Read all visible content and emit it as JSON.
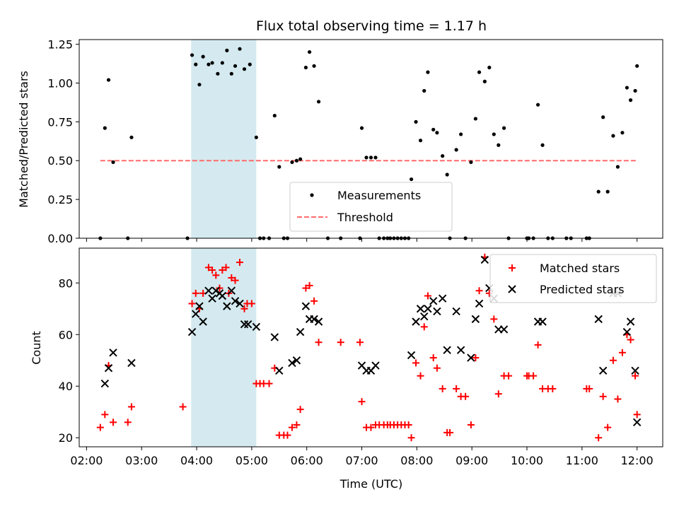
{
  "chart_data": {
    "type": "scatter",
    "title": "Flux total observing time = 1.17 h",
    "shaded_window": {
      "start": "03:54",
      "end": "05:05",
      "color": "#d4eaf0"
    },
    "top": {
      "ylabel": "Matched/Predicted stars",
      "ylim": [
        0,
        1.28
      ],
      "yticks": [
        "0.00",
        "0.25",
        "0.50",
        "0.75",
        "1.00",
        "1.25"
      ],
      "series": [
        {
          "name": "Measurements",
          "color": "#000000",
          "marker": "dot",
          "points": [
            [
              "02:15",
              0
            ],
            [
              "02:20",
              0.71
            ],
            [
              "02:24",
              1.02
            ],
            [
              "02:29",
              0.49
            ],
            [
              "02:45",
              0
            ],
            [
              "02:49",
              0.65
            ],
            [
              "03:50",
              0
            ],
            [
              "03:55",
              1.18
            ],
            [
              "03:59",
              1.12
            ],
            [
              "04:03",
              0.99
            ],
            [
              "04:07",
              1.17
            ],
            [
              "04:13",
              1.12
            ],
            [
              "04:17",
              1.13
            ],
            [
              "04:23",
              1.06
            ],
            [
              "04:28",
              1.13
            ],
            [
              "04:33",
              1.21
            ],
            [
              "04:38",
              1.06
            ],
            [
              "04:42",
              1.11
            ],
            [
              "04:47",
              1.22
            ],
            [
              "04:52",
              1.09
            ],
            [
              "04:58",
              1.12
            ],
            [
              "05:05",
              0.65
            ],
            [
              "05:09",
              0
            ],
            [
              "05:13",
              0
            ],
            [
              "05:19",
              0
            ],
            [
              "05:25",
              0.79
            ],
            [
              "05:30",
              0.46
            ],
            [
              "05:35",
              0
            ],
            [
              "05:39",
              0
            ],
            [
              "05:44",
              0.49
            ],
            [
              "05:49",
              0.5
            ],
            [
              "05:53",
              0.51
            ],
            [
              "05:59",
              1.1
            ],
            [
              "06:03",
              1.2
            ],
            [
              "06:08",
              1.11
            ],
            [
              "06:13",
              0.88
            ],
            [
              "06:23",
              0
            ],
            [
              "06:37",
              0
            ],
            [
              "06:58",
              0
            ],
            [
              "07:00",
              0.71
            ],
            [
              "07:05",
              0.52
            ],
            [
              "07:10",
              0.52
            ],
            [
              "07:15",
              0.52
            ],
            [
              "07:19",
              0
            ],
            [
              "07:24",
              0
            ],
            [
              "07:28",
              0
            ],
            [
              "07:31",
              0
            ],
            [
              "07:35",
              0
            ],
            [
              "07:39",
              0
            ],
            [
              "07:43",
              0
            ],
            [
              "07:47",
              0
            ],
            [
              "07:51",
              0
            ],
            [
              "07:54",
              0.38
            ],
            [
              "07:59",
              0.75
            ],
            [
              "08:04",
              0.63
            ],
            [
              "08:08",
              0.95
            ],
            [
              "08:12",
              1.07
            ],
            [
              "08:18",
              0.7
            ],
            [
              "08:22",
              0.68
            ],
            [
              "08:28",
              0.53
            ],
            [
              "08:33",
              0.41
            ],
            [
              "08:36",
              0
            ],
            [
              "08:43",
              0.57
            ],
            [
              "08:48",
              0.67
            ],
            [
              "08:53",
              0
            ],
            [
              "08:59",
              0.49
            ],
            [
              "09:04",
              0.77
            ],
            [
              "09:08",
              1.07
            ],
            [
              "09:14",
              1.01
            ],
            [
              "09:19",
              1.1
            ],
            [
              "09:24",
              0.67
            ],
            [
              "09:29",
              0.6
            ],
            [
              "09:35",
              0.71
            ],
            [
              "09:40",
              0
            ],
            [
              "10:00",
              0
            ],
            [
              "10:02",
              0
            ],
            [
              "10:07",
              0
            ],
            [
              "10:12",
              0.86
            ],
            [
              "10:17",
              0.6
            ],
            [
              "10:23",
              0
            ],
            [
              "10:28",
              0
            ],
            [
              "10:43",
              0
            ],
            [
              "10:48",
              0
            ],
            [
              "11:05",
              0
            ],
            [
              "11:08",
              0
            ],
            [
              "11:18",
              0.3
            ],
            [
              "11:23",
              0.78
            ],
            [
              "11:28",
              0.3
            ],
            [
              "11:34",
              0.66
            ],
            [
              "11:39",
              0.46
            ],
            [
              "11:44",
              0.68
            ],
            [
              "11:49",
              0.97
            ],
            [
              "11:53",
              0.89
            ],
            [
              "11:58",
              0.95
            ],
            [
              "12:00",
              1.11
            ]
          ]
        },
        {
          "name": "Threshold",
          "color": "#ff6b6b",
          "style": "dashed",
          "points": [
            [
              "02:15",
              0.5
            ],
            [
              "12:00",
              0.5
            ]
          ]
        }
      ],
      "legend_position": "lower center"
    },
    "bottom": {
      "ylabel": "Count",
      "xlabel": "Time (UTC)",
      "ylim": [
        16.5,
        93.5
      ],
      "yticks": [
        "20",
        "40",
        "60",
        "80"
      ],
      "xticks": [
        "02:00",
        "03:00",
        "04:00",
        "05:00",
        "06:00",
        "07:00",
        "08:00",
        "09:00",
        "10:00",
        "11:00",
        "12:00"
      ],
      "xlim": [
        "01:52",
        "12:28"
      ],
      "series": [
        {
          "name": "Matched stars",
          "color": "#ff0000",
          "marker": "+",
          "points": [
            [
              "02:15",
              24
            ],
            [
              "02:20",
              29
            ],
            [
              "02:24",
              48
            ],
            [
              "02:29",
              26
            ],
            [
              "02:45",
              26
            ],
            [
              "02:49",
              32
            ],
            [
              "03:45",
              32
            ],
            [
              "03:55",
              72
            ],
            [
              "03:59",
              76
            ],
            [
              "04:03",
              70
            ],
            [
              "04:07",
              76
            ],
            [
              "04:13",
              86
            ],
            [
              "04:17",
              85
            ],
            [
              "04:21",
              83
            ],
            [
              "04:25",
              78
            ],
            [
              "04:28",
              85
            ],
            [
              "04:32",
              86
            ],
            [
              "04:35",
              76
            ],
            [
              "04:38",
              82
            ],
            [
              "04:42",
              81
            ],
            [
              "04:47",
              88
            ],
            [
              "04:52",
              70
            ],
            [
              "04:55",
              72
            ],
            [
              "05:00",
              72
            ],
            [
              "05:05",
              41
            ],
            [
              "05:09",
              41
            ],
            [
              "05:13",
              41
            ],
            [
              "05:19",
              41
            ],
            [
              "05:25",
              47
            ],
            [
              "05:30",
              21
            ],
            [
              "05:35",
              21
            ],
            [
              "05:39",
              21
            ],
            [
              "05:44",
              24
            ],
            [
              "05:49",
              25
            ],
            [
              "05:53",
              31
            ],
            [
              "05:59",
              78
            ],
            [
              "06:03",
              79
            ],
            [
              "06:08",
              73
            ],
            [
              "06:13",
              57
            ],
            [
              "06:37",
              57
            ],
            [
              "06:58",
              57
            ],
            [
              "07:00",
              34
            ],
            [
              "07:05",
              24
            ],
            [
              "07:10",
              24
            ],
            [
              "07:15",
              25
            ],
            [
              "07:19",
              25
            ],
            [
              "07:24",
              25
            ],
            [
              "07:28",
              25
            ],
            [
              "07:31",
              25
            ],
            [
              "07:35",
              25
            ],
            [
              "07:39",
              25
            ],
            [
              "07:43",
              25
            ],
            [
              "07:47",
              25
            ],
            [
              "07:51",
              25
            ],
            [
              "07:54",
              20
            ],
            [
              "07:59",
              49
            ],
            [
              "08:04",
              44
            ],
            [
              "08:08",
              63
            ],
            [
              "08:12",
              75
            ],
            [
              "08:18",
              51
            ],
            [
              "08:22",
              47
            ],
            [
              "08:28",
              39
            ],
            [
              "08:33",
              22
            ],
            [
              "08:36",
              22
            ],
            [
              "08:43",
              39
            ],
            [
              "08:48",
              36
            ],
            [
              "08:53",
              36
            ],
            [
              "08:59",
              25
            ],
            [
              "09:04",
              51
            ],
            [
              "09:08",
              77
            ],
            [
              "09:14",
              90
            ],
            [
              "09:19",
              76
            ],
            [
              "09:24",
              66
            ],
            [
              "09:29",
              37
            ],
            [
              "09:35",
              44
            ],
            [
              "09:40",
              44
            ],
            [
              "10:00",
              44
            ],
            [
              "10:02",
              44
            ],
            [
              "10:07",
              44
            ],
            [
              "10:12",
              56
            ],
            [
              "10:17",
              39
            ],
            [
              "10:23",
              39
            ],
            [
              "10:28",
              39
            ],
            [
              "11:05",
              39
            ],
            [
              "11:08",
              39
            ],
            [
              "11:18",
              20
            ],
            [
              "11:23",
              36
            ],
            [
              "11:28",
              24
            ],
            [
              "11:34",
              50
            ],
            [
              "11:39",
              35
            ],
            [
              "11:44",
              53
            ],
            [
              "11:49",
              60
            ],
            [
              "11:53",
              58
            ],
            [
              "11:58",
              44
            ],
            [
              "12:00",
              29
            ]
          ]
        },
        {
          "name": "Predicted stars",
          "color": "#000000",
          "marker": "x",
          "points": [
            [
              "02:20",
              41
            ],
            [
              "02:24",
              47
            ],
            [
              "02:29",
              53
            ],
            [
              "02:49",
              49
            ],
            [
              "03:55",
              61
            ],
            [
              "03:59",
              68
            ],
            [
              "04:03",
              71
            ],
            [
              "04:07",
              65
            ],
            [
              "04:13",
              77
            ],
            [
              "04:17",
              74
            ],
            [
              "04:21",
              77
            ],
            [
              "04:25",
              76
            ],
            [
              "04:28",
              75
            ],
            [
              "04:33",
              71
            ],
            [
              "04:38",
              77
            ],
            [
              "04:42",
              73
            ],
            [
              "04:47",
              72
            ],
            [
              "04:52",
              64
            ],
            [
              "04:56",
              64
            ],
            [
              "05:05",
              63
            ],
            [
              "05:25",
              59
            ],
            [
              "05:30",
              46
            ],
            [
              "05:44",
              49
            ],
            [
              "05:49",
              50
            ],
            [
              "05:53",
              61
            ],
            [
              "05:59",
              71
            ],
            [
              "06:03",
              66
            ],
            [
              "06:08",
              66
            ],
            [
              "06:13",
              65
            ],
            [
              "07:00",
              48
            ],
            [
              "07:05",
              46
            ],
            [
              "07:10",
              46
            ],
            [
              "07:15",
              48
            ],
            [
              "07:54",
              52
            ],
            [
              "07:59",
              65
            ],
            [
              "08:04",
              70
            ],
            [
              "08:08",
              67
            ],
            [
              "08:12",
              70
            ],
            [
              "08:18",
              73
            ],
            [
              "08:22",
              69
            ],
            [
              "08:28",
              74
            ],
            [
              "08:33",
              54
            ],
            [
              "08:43",
              69
            ],
            [
              "08:48",
              54
            ],
            [
              "08:59",
              51
            ],
            [
              "09:04",
              66
            ],
            [
              "09:08",
              72
            ],
            [
              "09:14",
              89
            ],
            [
              "09:19",
              78
            ],
            [
              "09:24",
              74
            ],
            [
              "09:29",
              62
            ],
            [
              "09:35",
              62
            ],
            [
              "10:12",
              65
            ],
            [
              "10:17",
              65
            ],
            [
              "11:18",
              66
            ],
            [
              "11:23",
              46
            ],
            [
              "11:34",
              76
            ],
            [
              "11:39",
              76
            ],
            [
              "11:49",
              61
            ],
            [
              "11:53",
              65
            ],
            [
              "11:58",
              46
            ],
            [
              "12:00",
              26
            ]
          ]
        }
      ],
      "legend_position": "upper right"
    }
  }
}
